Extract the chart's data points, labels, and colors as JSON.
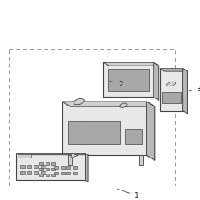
{
  "bg_color": "#ffffff",
  "line_color": "#444444",
  "dashed_color": "#999999",
  "label_color": "#222222",
  "face_light": "#e8e8e8",
  "face_mid": "#d0d0d0",
  "face_dark": "#b8b8b8",
  "face_darker": "#a8a8a8",
  "figsize": [
    2.5,
    2.5
  ],
  "dpi": 100
}
